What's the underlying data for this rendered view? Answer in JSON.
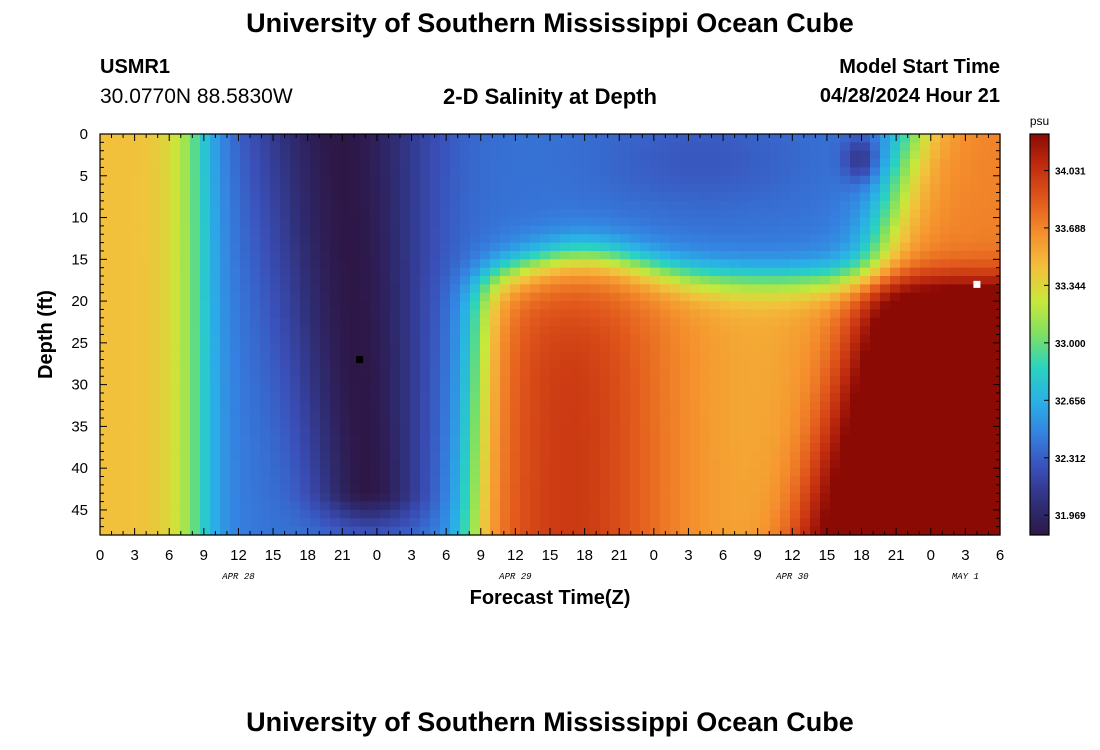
{
  "header": {
    "title": "University of Southern Mississippi Ocean Cube",
    "station_id": "USMR1",
    "coords": "30.0770N  88.5830W",
    "chart_title": "2-D Salinity at Depth",
    "start_label": "Model Start Time",
    "start_value": "04/28/2024 Hour 21"
  },
  "footer": {
    "title": "University of Southern Mississippi Ocean Cube"
  },
  "chart_data": {
    "type": "heatmap",
    "title": "2-D Salinity at Depth",
    "xlabel": "Forecast Time(Z)",
    "ylabel": "Depth (ft)",
    "x_hours_range": [
      0,
      78
    ],
    "x_tick_labels": [
      "0",
      "3",
      "6",
      "9",
      "12",
      "15",
      "18",
      "21",
      "0",
      "3",
      "6",
      "9",
      "12",
      "15",
      "18",
      "21",
      "0",
      "3",
      "6",
      "9",
      "12",
      "15",
      "18",
      "21",
      "0",
      "3",
      "6"
    ],
    "day_labels": [
      {
        "text": "APR 28",
        "hour": 12
      },
      {
        "text": "APR 29",
        "hour": 36
      },
      {
        "text": "APR 30",
        "hour": 60
      },
      {
        "text": "MAY 1",
        "hour": 75
      }
    ],
    "y_range": [
      0,
      48
    ],
    "y_ticks": [
      0,
      5,
      10,
      15,
      20,
      25,
      30,
      35,
      40,
      45
    ],
    "y_inverted": true,
    "colorbar": {
      "unit": "psu",
      "labels": [
        "34.031",
        "33.688",
        "33.344",
        "33.000",
        "32.656",
        "32.312",
        "31.969"
      ],
      "range": [
        31.85,
        34.25
      ]
    },
    "markers": [
      {
        "name": "minimum",
        "hour": 22.5,
        "depth": 27,
        "color": "#000000"
      },
      {
        "name": "maximum",
        "hour": 76,
        "depth": 18,
        "color": "#ffffff"
      }
    ],
    "colormap": [
      "#2d1747",
      "#30307a",
      "#3a4fb8",
      "#3580e0",
      "#2ab0e6",
      "#2ad3c0",
      "#7de064",
      "#c8e83a",
      "#f3c03c",
      "#f5902d",
      "#e25a1c",
      "#c22d0f",
      "#8c0a04"
    ]
  }
}
